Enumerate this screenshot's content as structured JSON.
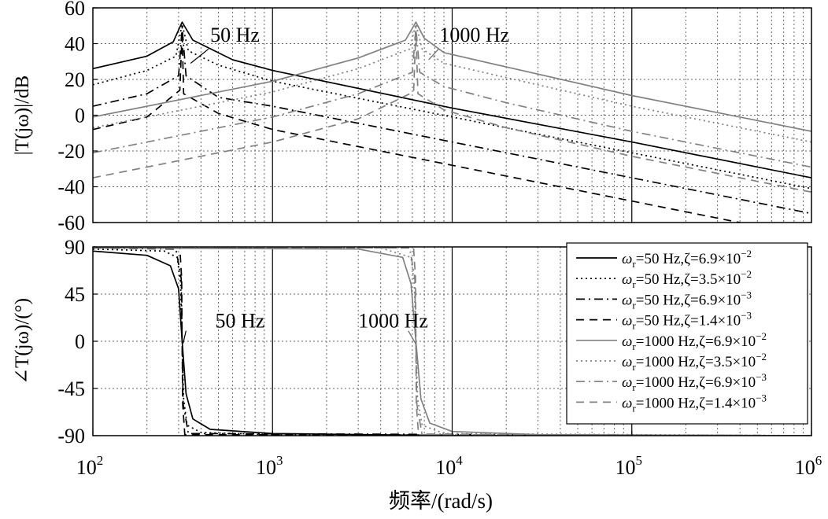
{
  "chart_data": [
    {
      "type": "line",
      "panel": "magnitude",
      "ylabel": "|T(jω)|/dB",
      "x_scale": "log",
      "xlim": [
        100,
        1000000
      ],
      "ylim": [
        -60,
        60
      ],
      "yticks": [
        60,
        40,
        20,
        0,
        -20,
        -40,
        -60
      ],
      "grid": true,
      "annotations": [
        {
          "text": "50 Hz",
          "x": 450,
          "y": 45
        },
        {
          "text": "1000 Hz",
          "x": 8500,
          "y": 45
        }
      ],
      "series": [
        {
          "x": [
            100,
            200,
            280,
            314,
            360,
            600,
            1000,
            10000,
            100000,
            1000000
          ],
          "y": [
            26,
            33,
            41,
            52,
            42,
            31,
            25,
            4,
            -15,
            -35
          ]
        },
        {
          "x": [
            100,
            200,
            290,
            314,
            340,
            500,
            1000,
            10000,
            100000,
            1000000
          ],
          "y": [
            17,
            25,
            33,
            51,
            36,
            28,
            19,
            -1,
            -21,
            -41
          ]
        },
        {
          "x": [
            100,
            200,
            300,
            314,
            330,
            500,
            1000,
            10000,
            100000,
            1000000
          ],
          "y": [
            5,
            12,
            22,
            49,
            22,
            10,
            5,
            -15,
            -35,
            -55
          ]
        },
        {
          "x": [
            100,
            200,
            305,
            314,
            320,
            500,
            1000,
            10000,
            100000,
            1000000
          ],
          "y": [
            -8,
            -1,
            14,
            47,
            12,
            1,
            -8,
            -28,
            -48,
            -68
          ]
        },
        {
          "x": [
            100,
            1000,
            3000,
            5500,
            6280,
            7000,
            9000,
            20000,
            100000,
            1000000
          ],
          "y": [
            -1,
            19,
            32,
            42,
            52,
            43,
            35,
            27,
            11,
            -9
          ]
        },
        {
          "x": [
            100,
            1000,
            3000,
            5800,
            6280,
            6800,
            9000,
            20000,
            100000,
            1000000
          ],
          "y": [
            -7,
            13,
            26,
            37,
            51,
            37,
            29,
            21,
            5,
            -15
          ]
        },
        {
          "x": [
            100,
            1000,
            3000,
            6000,
            6280,
            6600,
            9000,
            20000,
            100000,
            1000000
          ],
          "y": [
            -21,
            -1,
            12,
            24,
            49,
            24,
            16,
            7,
            -9,
            -29
          ]
        },
        {
          "x": [
            100,
            1000,
            3000,
            6100,
            6280,
            6450,
            9000,
            20000,
            100000,
            1000000
          ],
          "y": [
            -35,
            -15,
            -2,
            13,
            47,
            12,
            3,
            -7,
            -23,
            -43
          ]
        }
      ]
    },
    {
      "type": "line",
      "panel": "phase",
      "ylabel": "∠T(jω)/(°)",
      "xlabel": "频率/(rad/s)",
      "x_scale": "log",
      "xlim": [
        100,
        1000000
      ],
      "ylim": [
        -90,
        90
      ],
      "yticks": [
        90,
        45,
        0,
        -45,
        -90
      ],
      "xticks": [
        {
          "base": "10",
          "exp": "2"
        },
        {
          "base": "10",
          "exp": "3"
        },
        {
          "base": "10",
          "exp": "4"
        },
        {
          "base": "10",
          "exp": "5"
        },
        {
          "base": "10",
          "exp": "6"
        }
      ],
      "grid": true,
      "legend_position": "right",
      "annotations": [
        {
          "text": "50 Hz",
          "x": 480,
          "y": 20
        },
        {
          "text": "1000 Hz",
          "x": 3000,
          "y": 20
        }
      ],
      "series": [
        {
          "x": [
            100,
            200,
            270,
            300,
            314,
            330,
            360,
            450,
            1000,
            10000,
            1000000
          ],
          "y": [
            86,
            82,
            72,
            50,
            0,
            -50,
            -74,
            -84,
            -88,
            -90,
            -90
          ]
        },
        {
          "x": [
            100,
            250,
            295,
            308,
            314,
            320,
            335,
            400,
            1000,
            1000000
          ],
          "y": [
            88,
            86,
            80,
            55,
            0,
            -55,
            -80,
            -87,
            -89,
            -90
          ]
        },
        {
          "x": [
            100,
            290,
            310,
            314,
            318,
            340,
            1000000
          ],
          "y": [
            89,
            88,
            60,
            0,
            -60,
            -88,
            -90
          ]
        },
        {
          "x": [
            100,
            305,
            312,
            314,
            316,
            325,
            1000000
          ],
          "y": [
            90,
            89,
            60,
            0,
            -60,
            -89,
            -90
          ]
        },
        {
          "x": [
            100,
            3000,
            5300,
            5900,
            6280,
            6700,
            7500,
            10000,
            30000,
            1000000
          ],
          "y": [
            89,
            88,
            80,
            55,
            0,
            -55,
            -78,
            -86,
            -89,
            -90
          ]
        },
        {
          "x": [
            100,
            4000,
            5900,
            6150,
            6280,
            6420,
            6800,
            9000,
            1000000
          ],
          "y": [
            90,
            89,
            80,
            55,
            0,
            -55,
            -80,
            -88,
            -90
          ]
        },
        {
          "x": [
            100,
            5800,
            6200,
            6280,
            6360,
            6800,
            1000000
          ],
          "y": [
            90,
            89,
            60,
            0,
            -60,
            -89,
            -90
          ]
        },
        {
          "x": [
            100,
            6100,
            6250,
            6280,
            6310,
            6500,
            1000000
          ],
          "y": [
            90,
            89,
            60,
            0,
            -60,
            -89,
            -90
          ]
        }
      ]
    }
  ],
  "legend": [
    {
      "pre": "ω",
      "sub": "r",
      "mid": "=50 Hz,ζ=6.9×10",
      "sup": "−2"
    },
    {
      "pre": "ω",
      "sub": "r",
      "mid": "=50 Hz,ζ=3.5×10",
      "sup": "−2"
    },
    {
      "pre": "ω",
      "sub": "r",
      "mid": "=50 Hz,ζ=6.9×10",
      "sup": "−3"
    },
    {
      "pre": "ω",
      "sub": "r",
      "mid": "=50 Hz,ζ=1.4×10",
      "sup": "−3"
    },
    {
      "pre": "ω",
      "sub": "r",
      "mid": "=1000 Hz,ζ=6.9×10",
      "sup": "−2"
    },
    {
      "pre": "ω",
      "sub": "r",
      "mid": "=1000 Hz,ζ=3.5×10",
      "sup": "−2"
    },
    {
      "pre": "ω",
      "sub": "r",
      "mid": "=1000 Hz,ζ=6.9×10",
      "sup": "−3"
    },
    {
      "pre": "ω",
      "sub": "r",
      "mid": "=1000 Hz,ζ=1.4×10",
      "sup": "−3"
    }
  ],
  "styles": [
    {
      "color": "#000000",
      "dash": "none"
    },
    {
      "color": "#000000",
      "dash": "dot"
    },
    {
      "color": "#000000",
      "dash": "dashdot"
    },
    {
      "color": "#000000",
      "dash": "dash"
    },
    {
      "color": "#808080",
      "dash": "none"
    },
    {
      "color": "#808080",
      "dash": "dot"
    },
    {
      "color": "#808080",
      "dash": "dashdot"
    },
    {
      "color": "#808080",
      "dash": "dash"
    }
  ]
}
